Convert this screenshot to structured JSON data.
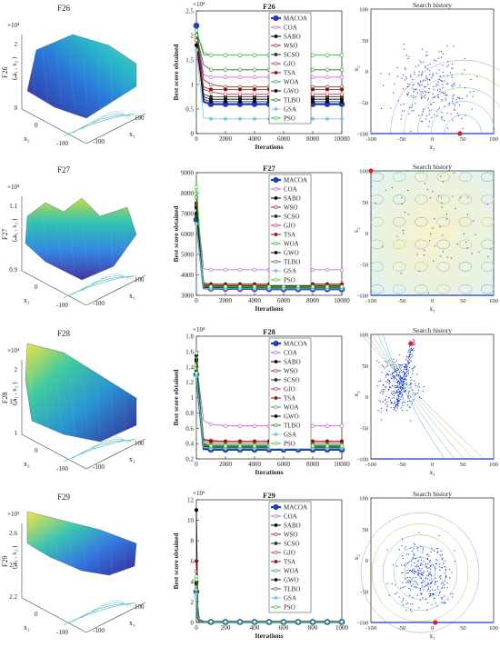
{
  "colors": {
    "MACOA": "#1f3fbf",
    "COA": "#c050d8",
    "SABO": "#000000",
    "WSO": "#8a2a1a",
    "SCSO": "#303030",
    "GJO": "#c02828",
    "TSA": "#8a1414",
    "WOA": "#2ca02c",
    "GWO": "#111111",
    "TLBO": "#1a7a1a",
    "GSA": "#7ec8e3",
    "PSO": "#22c622",
    "search_points": "#1b3dd6",
    "best_point": "#e02020"
  },
  "legend_labels": [
    "MACOA",
    "COA",
    "SABO",
    "WSO",
    "SCSO",
    "GJO",
    "TSA",
    "WOA",
    "GWO",
    "TLBO",
    "GSA",
    "PSO"
  ],
  "rows": [
    {
      "func": "F26",
      "surface": {
        "title": "F26",
        "zlabel": "F26",
        "zlabel2": "( x₁ , x₂ )",
        "exp": "×10⁴",
        "zticks": [
          "0",
          "1",
          "2"
        ],
        "x1_label": "x₁",
        "x2_label": "x₂",
        "x1_ticks": [
          "100",
          "-100"
        ],
        "x2_ticks": [
          "0",
          "-100"
        ]
      },
      "convergence": {
        "title": "F26",
        "ylabel": "Best score obtained",
        "xlabel": "Iterations",
        "exp": "×10⁴",
        "yticks": [
          "0",
          "0.5",
          "1",
          "1.5",
          "2",
          "2.5"
        ],
        "xticks": [
          "0",
          "2000",
          "4000",
          "6000",
          "8000",
          "10000"
        ]
      },
      "search": {
        "title": "Search history",
        "xlabel": "x₁",
        "ylabel": "x₂",
        "xticks": [
          "-100",
          "-50",
          "0",
          "50",
          "100"
        ],
        "yticks": [
          "-100",
          "-50",
          "0",
          "50",
          "100"
        ]
      }
    },
    {
      "func": "F27",
      "surface": {
        "title": "F27",
        "zlabel": "F27",
        "zlabel2": "( x₁ , x₂ )",
        "exp": "×10⁴",
        "zticks": [
          "0.9",
          "1",
          "1.1"
        ],
        "x1_label": "x₁",
        "x2_label": "x₂",
        "x1_ticks": [
          "100",
          "-100"
        ],
        "x2_ticks": [
          "0",
          "-100"
        ]
      },
      "convergence": {
        "title": "F27",
        "ylabel": "Best score obtained",
        "xlabel": "Iterations",
        "exp": "",
        "yticks": [
          "3000",
          "4000",
          "5000",
          "6000",
          "7000",
          "8000",
          "9000"
        ],
        "xticks": [
          "0",
          "2000",
          "4000",
          "6000",
          "8000",
          "10000"
        ]
      },
      "search": {
        "title": "Search history",
        "xlabel": "x₁",
        "ylabel": "x₂",
        "xticks": [
          "-100",
          "-50",
          "0",
          "50",
          "100"
        ],
        "yticks": [
          "-100",
          "-50",
          "0",
          "50",
          "100"
        ]
      }
    },
    {
      "func": "F28",
      "surface": {
        "title": "F28",
        "zlabel": "F28",
        "zlabel2": "( x₁ , x₂ )",
        "exp": "×10⁴",
        "zticks": [
          "1",
          "1.5",
          "2"
        ],
        "x1_label": "x₁",
        "x2_label": "x₂",
        "x1_ticks": [
          "100",
          "-100"
        ],
        "x2_ticks": [
          "0",
          "-100"
        ]
      },
      "convergence": {
        "title": "F28",
        "ylabel": "Best score obtained",
        "xlabel": "Iterations",
        "exp": "×10⁴",
        "yticks": [
          "0.2",
          "0.4",
          "0.6",
          "0.8",
          "1",
          "1.2",
          "1.4",
          "1.6",
          "1.8"
        ],
        "xticks": [
          "0",
          "2000",
          "4000",
          "6000",
          "8000",
          "10000"
        ]
      },
      "search": {
        "title": "Search history",
        "xlabel": "x₁",
        "ylabel": "x₂",
        "xticks": [
          "-100",
          "-50",
          "0",
          "50",
          "100"
        ],
        "yticks": [
          "-100",
          "-50",
          "0",
          "50",
          "100"
        ]
      }
    },
    {
      "func": "F29",
      "surface": {
        "title": "F29",
        "zlabel": "F29",
        "zlabel2": "( x₁ , x₂ )",
        "exp": "×10⁵",
        "zticks": [
          "2.2",
          "2.4",
          "2.6"
        ],
        "x1_label": "x₁",
        "x2_label": "x₂",
        "x1_ticks": [
          "100",
          "-100"
        ],
        "x2_ticks": [
          "0",
          "-100"
        ]
      },
      "convergence": {
        "title": "F29",
        "ylabel": "Best score obtained",
        "xlabel": "Iterations",
        "exp": "×10⁵",
        "yticks": [
          "0",
          "2",
          "4",
          "6",
          "8",
          "10",
          "12"
        ],
        "xticks": [
          "0",
          "200",
          "400",
          "600",
          "800",
          "1000"
        ]
      },
      "search": {
        "title": "Search history",
        "xlabel": "x₁",
        "ylabel": "x₂",
        "xticks": [
          "-100",
          "-50",
          "0",
          "50",
          "100"
        ],
        "yticks": [
          "-100",
          "-50",
          "0",
          "50",
          "100"
        ]
      }
    }
  ],
  "chart_data": [
    {
      "type": "line",
      "title": "F26",
      "xlabel": "Iterations",
      "ylabel": "Best score obtained",
      "x": [
        0,
        500,
        1000,
        2000,
        4000,
        6000,
        8000,
        10000
      ],
      "xlim": [
        0,
        10000
      ],
      "ylim": [
        0,
        25000
      ],
      "legend": "top-right",
      "series": [
        {
          "name": "MACOA",
          "values": [
            22000,
            6500,
            6000,
            6000,
            6000,
            6000,
            6000,
            6000
          ]
        },
        {
          "name": "COA",
          "values": [
            21000,
            12000,
            11500,
            11500,
            11500,
            11500,
            11500,
            11500
          ]
        },
        {
          "name": "SABO",
          "values": [
            20000,
            7500,
            7000,
            7000,
            7000,
            7000,
            7000,
            7000
          ]
        },
        {
          "name": "WSO",
          "values": [
            20000,
            11000,
            10000,
            9500,
            9500,
            9500,
            9500,
            9500
          ]
        },
        {
          "name": "SCSO",
          "values": [
            19000,
            8000,
            7500,
            7500,
            7500,
            7500,
            7500,
            7500
          ]
        },
        {
          "name": "GJO",
          "values": [
            19000,
            9000,
            8500,
            8000,
            8000,
            8000,
            8000,
            8000
          ]
        },
        {
          "name": "TSA",
          "values": [
            18000,
            9500,
            9000,
            9000,
            9000,
            9000,
            9000,
            9000
          ]
        },
        {
          "name": "WOA",
          "values": [
            21000,
            16000,
            16000,
            16000,
            16000,
            16000,
            16000,
            16000
          ]
        },
        {
          "name": "GWO",
          "values": [
            18000,
            7000,
            6500,
            6500,
            6500,
            6500,
            6500,
            6500
          ]
        },
        {
          "name": "TLBO",
          "values": [
            20000,
            14000,
            13000,
            13000,
            13000,
            13000,
            13000,
            13000
          ]
        },
        {
          "name": "GSA",
          "values": [
            17000,
            3200,
            3000,
            3000,
            3000,
            3000,
            3000,
            3000
          ]
        },
        {
          "name": "PSO",
          "values": [
            21000,
            16500,
            16000,
            16000,
            16000,
            16000,
            16000,
            16000
          ]
        }
      ]
    },
    {
      "type": "line",
      "title": "F27",
      "xlabel": "Iterations",
      "ylabel": "Best score obtained",
      "x": [
        0,
        500,
        1000,
        2000,
        4000,
        6000,
        8000,
        10000
      ],
      "xlim": [
        0,
        10000
      ],
      "ylim": [
        3000,
        9000
      ],
      "legend": "top-right",
      "series": [
        {
          "name": "MACOA",
          "values": [
            6700,
            3350,
            3330,
            3320,
            3310,
            3300,
            3300,
            3300
          ]
        },
        {
          "name": "COA",
          "values": [
            7600,
            4300,
            4250,
            4250,
            4250,
            4250,
            4250,
            4250
          ]
        },
        {
          "name": "SABO",
          "values": [
            7000,
            3500,
            3450,
            3450,
            3450,
            3450,
            3450,
            3450
          ]
        },
        {
          "name": "WSO",
          "values": [
            7400,
            3550,
            3500,
            3480,
            3480,
            3480,
            3480,
            3480
          ]
        },
        {
          "name": "SCSO",
          "values": [
            6900,
            3450,
            3420,
            3420,
            3420,
            3420,
            3420,
            3420
          ]
        },
        {
          "name": "GJO",
          "values": [
            7200,
            3550,
            3500,
            3500,
            3500,
            3500,
            3500,
            3500
          ]
        },
        {
          "name": "TSA",
          "values": [
            7500,
            3600,
            3550,
            3550,
            3550,
            3550,
            3550,
            3550
          ]
        },
        {
          "name": "WOA",
          "values": [
            8000,
            3400,
            3380,
            3380,
            3380,
            3380,
            3380,
            3380
          ]
        },
        {
          "name": "GWO",
          "values": [
            7300,
            3380,
            3360,
            3350,
            3350,
            3350,
            3350,
            3350
          ]
        },
        {
          "name": "TLBO",
          "values": [
            7800,
            3420,
            3400,
            3400,
            3400,
            3400,
            3400,
            3400
          ]
        },
        {
          "name": "GSA",
          "values": [
            6500,
            3340,
            3320,
            3320,
            3320,
            3320,
            3320,
            3320
          ]
        },
        {
          "name": "PSO",
          "values": [
            8300,
            3450,
            3430,
            3430,
            3430,
            3430,
            3430,
            3430
          ]
        }
      ]
    },
    {
      "type": "line",
      "title": "F28",
      "xlabel": "Iterations",
      "ylabel": "Best score obtained",
      "x": [
        0,
        500,
        1000,
        2000,
        4000,
        6000,
        8000,
        10000
      ],
      "xlim": [
        0,
        10000
      ],
      "ylim": [
        2000,
        18000
      ],
      "legend": "top-right",
      "series": [
        {
          "name": "MACOA",
          "values": [
            13000,
            3300,
            3200,
            3200,
            3200,
            3200,
            3200,
            3200
          ]
        },
        {
          "name": "COA",
          "values": [
            14500,
            7000,
            6500,
            6300,
            6300,
            6300,
            6300,
            6300
          ]
        },
        {
          "name": "SABO",
          "values": [
            15500,
            4000,
            3800,
            3800,
            3800,
            3800,
            3800,
            3800
          ]
        },
        {
          "name": "WSO",
          "values": [
            14000,
            4600,
            4400,
            4300,
            4300,
            4300,
            4300,
            4300
          ]
        },
        {
          "name": "SCSO",
          "values": [
            13500,
            3700,
            3600,
            3600,
            3600,
            3600,
            3600,
            3600
          ]
        },
        {
          "name": "GJO",
          "values": [
            14200,
            4300,
            4100,
            4100,
            4100,
            4100,
            4100,
            4100
          ]
        },
        {
          "name": "TSA",
          "values": [
            15000,
            4500,
            4300,
            4300,
            4300,
            4300,
            4300,
            4300
          ]
        },
        {
          "name": "WOA",
          "values": [
            13800,
            3900,
            3800,
            3800,
            3800,
            3800,
            3800,
            3800
          ]
        },
        {
          "name": "GWO",
          "values": [
            14800,
            3600,
            3500,
            3500,
            3500,
            3500,
            3500,
            3500
          ]
        },
        {
          "name": "TLBO",
          "values": [
            13200,
            3400,
            3300,
            3300,
            3300,
            3300,
            3300,
            3300
          ]
        },
        {
          "name": "GSA",
          "values": [
            12800,
            3500,
            3400,
            3400,
            3400,
            3400,
            3400,
            3400
          ]
        },
        {
          "name": "PSO",
          "values": [
            15800,
            3800,
            3700,
            3700,
            3700,
            3700,
            3700,
            3700
          ]
        }
      ]
    },
    {
      "type": "line",
      "title": "F29",
      "xlabel": "Iterations",
      "ylabel": "Best score obtained",
      "x": [
        0,
        10,
        20,
        50,
        200,
        400,
        600,
        800,
        1000
      ],
      "xlim": [
        0,
        1000
      ],
      "ylim": [
        0,
        1200000
      ],
      "legend": "top-right",
      "series": [
        {
          "name": "MACOA",
          "values": [
            300000,
            50000,
            10000,
            5000,
            5000,
            5000,
            5000,
            5000,
            5000
          ]
        },
        {
          "name": "COA",
          "values": [
            250000,
            60000,
            20000,
            8000,
            8000,
            8000,
            8000,
            8000,
            8000
          ]
        },
        {
          "name": "SABO",
          "values": [
            1100000,
            150000,
            30000,
            10000,
            8000,
            8000,
            8000,
            8000,
            8000
          ]
        },
        {
          "name": "WSO",
          "values": [
            500000,
            100000,
            25000,
            8000,
            7000,
            7000,
            7000,
            7000,
            7000
          ]
        },
        {
          "name": "SCSO",
          "values": [
            400000,
            80000,
            20000,
            7000,
            6000,
            6000,
            6000,
            6000,
            6000
          ]
        },
        {
          "name": "GJO",
          "values": [
            350000,
            70000,
            18000,
            7000,
            6000,
            6000,
            6000,
            6000,
            6000
          ]
        },
        {
          "name": "TSA",
          "values": [
            600000,
            120000,
            30000,
            9000,
            7000,
            7000,
            7000,
            7000,
            7000
          ]
        },
        {
          "name": "WOA",
          "values": [
            450000,
            90000,
            22000,
            8000,
            7000,
            7000,
            7000,
            7000,
            7000
          ]
        },
        {
          "name": "GWO",
          "values": [
            380000,
            75000,
            18000,
            7000,
            6000,
            6000,
            6000,
            6000,
            6000
          ]
        },
        {
          "name": "TLBO",
          "values": [
            320000,
            60000,
            15000,
            6000,
            5000,
            5000,
            5000,
            5000,
            5000
          ]
        },
        {
          "name": "GSA",
          "values": [
            280000,
            55000,
            14000,
            6000,
            5000,
            5000,
            5000,
            5000,
            5000
          ]
        },
        {
          "name": "PSO",
          "values": [
            420000,
            85000,
            20000,
            7000,
            6000,
            6000,
            6000,
            6000,
            6000
          ]
        }
      ]
    }
  ]
}
